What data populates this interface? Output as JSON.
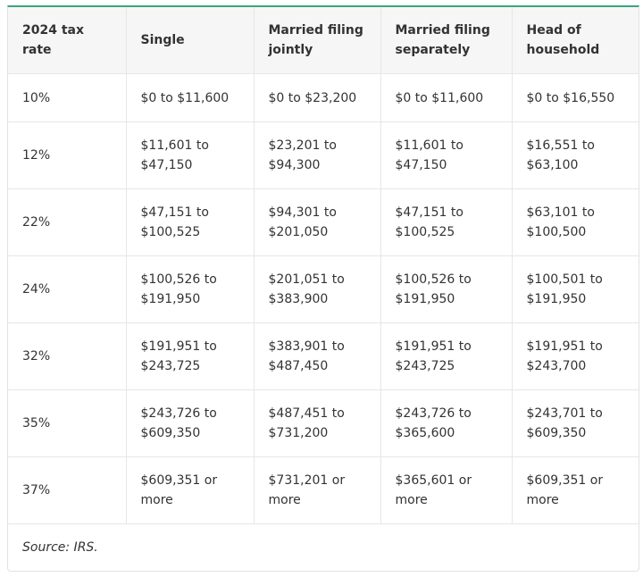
{
  "table": {
    "header": [
      "2024 tax rate",
      "Single",
      "Married filing jointly",
      "Married filing separately",
      "Head of household"
    ],
    "rows": [
      [
        "10%",
        "$0 to $11,600",
        "$0 to $23,200",
        "$0 to $11,600",
        "$0 to $16,550"
      ],
      [
        "12%",
        "$11,601 to $47,150",
        "$23,201 to $94,300",
        "$11,601 to $47,150",
        "$16,551 to $63,100"
      ],
      [
        "22%",
        "$47,151 to $100,525",
        "$94,301 to $201,050",
        "$47,151 to $100,525",
        "$63,101 to $100,500"
      ],
      [
        "24%",
        "$100,526 to $191,950",
        "$201,051 to $383,900",
        "$100,526 to $191,950",
        "$100,501 to $191,950"
      ],
      [
        "32%",
        "$191,951 to $243,725",
        "$383,901 to $487,450",
        "$191,951 to $243,725",
        "$191,951 to $243,700"
      ],
      [
        "35%",
        "$243,726 to $609,350",
        "$487,451 to $731,200",
        "$243,726 to $365,600",
        "$243,701 to $609,350"
      ],
      [
        "37%",
        "$609,351 or more",
        "$731,201 or more",
        "$365,601 or more",
        "$609,351 or more"
      ]
    ],
    "source": "Source: IRS."
  }
}
